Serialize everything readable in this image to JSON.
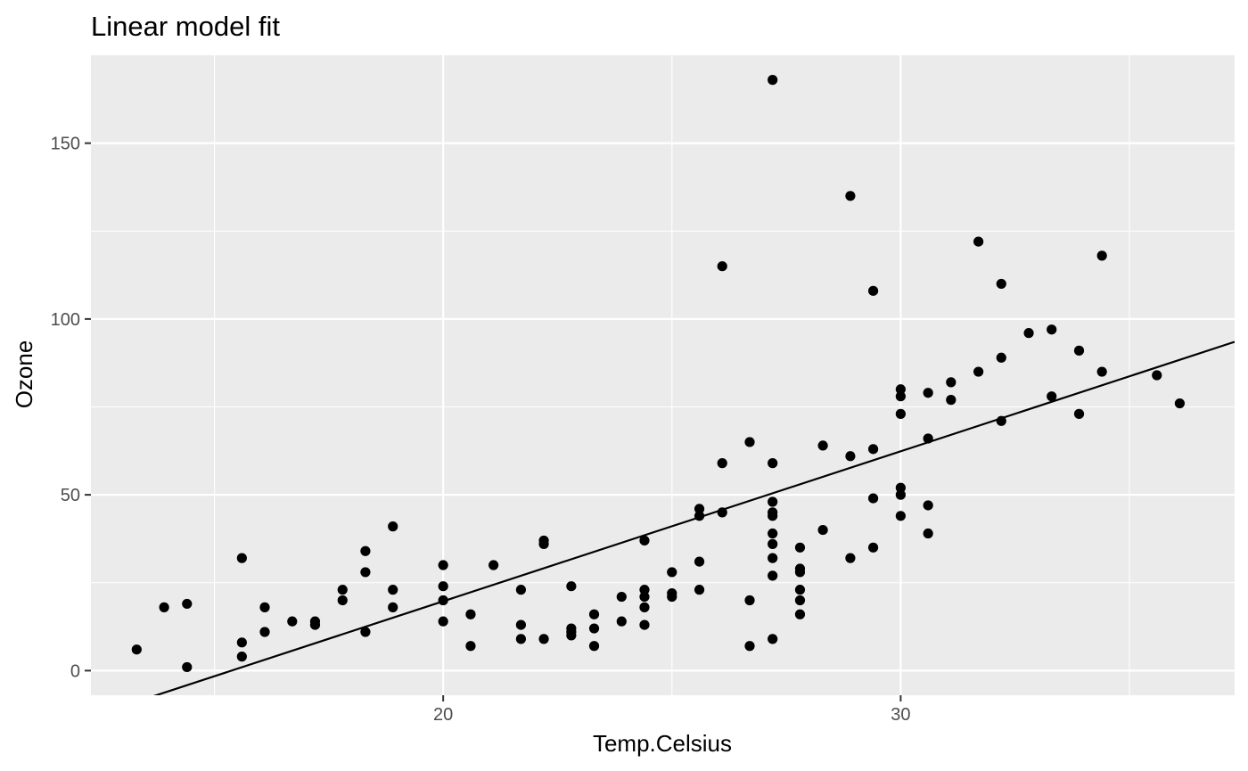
{
  "chart_data": {
    "type": "scatter",
    "title": "Linear model fit",
    "xlabel": "Temp.Celsius",
    "ylabel": "Ozone",
    "xlim": [
      12.3,
      37.3
    ],
    "ylim": [
      -7,
      175
    ],
    "x_ticks": [
      20,
      30
    ],
    "x_minor_ticks": [
      15,
      25,
      35
    ],
    "y_ticks": [
      0,
      50,
      100,
      150
    ],
    "y_minor_ticks": [
      25,
      75,
      125
    ],
    "x_tick_labels": [
      "20",
      "30"
    ],
    "y_tick_labels": [
      "0",
      "50",
      "100",
      "150"
    ],
    "grid": true,
    "colors": {
      "panel": "#ebebeb",
      "grid": "#ffffff",
      "point": "#000000",
      "line": "#000000"
    },
    "fit_line": {
      "x": [
        12.3,
        37.3
      ],
      "y": [
        -13.1,
        93.5
      ]
    },
    "points": [
      [
        13.3,
        6
      ],
      [
        13.9,
        18
      ],
      [
        14.4,
        19
      ],
      [
        14.4,
        1
      ],
      [
        15.6,
        32
      ],
      [
        15.6,
        8
      ],
      [
        15.6,
        4
      ],
      [
        16.1,
        18
      ],
      [
        16.1,
        11
      ],
      [
        16.7,
        14
      ],
      [
        17.2,
        14
      ],
      [
        17.2,
        13
      ],
      [
        17.8,
        23
      ],
      [
        17.8,
        20
      ],
      [
        18.3,
        34
      ],
      [
        18.3,
        28
      ],
      [
        18.3,
        11
      ],
      [
        18.9,
        41
      ],
      [
        18.9,
        23
      ],
      [
        18.9,
        18
      ],
      [
        20.0,
        30
      ],
      [
        20.0,
        24
      ],
      [
        20.0,
        20
      ],
      [
        20.0,
        14
      ],
      [
        20.6,
        16
      ],
      [
        20.6,
        7
      ],
      [
        21.1,
        30
      ],
      [
        21.7,
        23
      ],
      [
        21.7,
        13
      ],
      [
        21.7,
        9
      ],
      [
        22.2,
        37
      ],
      [
        22.2,
        36
      ],
      [
        22.2,
        9
      ],
      [
        22.8,
        24
      ],
      [
        22.8,
        12
      ],
      [
        22.8,
        11
      ],
      [
        22.8,
        10
      ],
      [
        23.3,
        16
      ],
      [
        23.3,
        12
      ],
      [
        23.3,
        7
      ],
      [
        23.9,
        21
      ],
      [
        23.9,
        14
      ],
      [
        24.4,
        37
      ],
      [
        24.4,
        23
      ],
      [
        24.4,
        21
      ],
      [
        24.4,
        18
      ],
      [
        24.4,
        13
      ],
      [
        25.0,
        28
      ],
      [
        25.0,
        22
      ],
      [
        25.0,
        21
      ],
      [
        25.6,
        46
      ],
      [
        25.6,
        44
      ],
      [
        25.6,
        31
      ],
      [
        25.6,
        23
      ],
      [
        26.1,
        115
      ],
      [
        26.1,
        59
      ],
      [
        26.1,
        45
      ],
      [
        26.7,
        65
      ],
      [
        26.7,
        20
      ],
      [
        26.7,
        7
      ],
      [
        27.2,
        168
      ],
      [
        27.2,
        59
      ],
      [
        27.2,
        48
      ],
      [
        27.2,
        45
      ],
      [
        27.2,
        44
      ],
      [
        27.2,
        39
      ],
      [
        27.2,
        36
      ],
      [
        27.2,
        32
      ],
      [
        27.2,
        27
      ],
      [
        27.2,
        9
      ],
      [
        27.8,
        35
      ],
      [
        27.8,
        29
      ],
      [
        27.8,
        28
      ],
      [
        27.8,
        23
      ],
      [
        27.8,
        20
      ],
      [
        27.8,
        16
      ],
      [
        28.3,
        64
      ],
      [
        28.3,
        40
      ],
      [
        28.9,
        135
      ],
      [
        28.9,
        61
      ],
      [
        28.9,
        32
      ],
      [
        29.4,
        108
      ],
      [
        29.4,
        63
      ],
      [
        29.4,
        49
      ],
      [
        29.4,
        35
      ],
      [
        30.0,
        80
      ],
      [
        30.0,
        78
      ],
      [
        30.0,
        73
      ],
      [
        30.0,
        52
      ],
      [
        30.0,
        50
      ],
      [
        30.0,
        44
      ],
      [
        30.6,
        79
      ],
      [
        30.6,
        66
      ],
      [
        30.6,
        47
      ],
      [
        30.6,
        39
      ],
      [
        31.1,
        82
      ],
      [
        31.1,
        77
      ],
      [
        31.7,
        122
      ],
      [
        31.7,
        85
      ],
      [
        32.2,
        110
      ],
      [
        32.2,
        89
      ],
      [
        32.2,
        71
      ],
      [
        32.8,
        96
      ],
      [
        33.3,
        97
      ],
      [
        33.3,
        78
      ],
      [
        33.9,
        91
      ],
      [
        33.9,
        73
      ],
      [
        34.4,
        118
      ],
      [
        34.4,
        85
      ],
      [
        35.6,
        84
      ],
      [
        36.1,
        76
      ]
    ]
  }
}
